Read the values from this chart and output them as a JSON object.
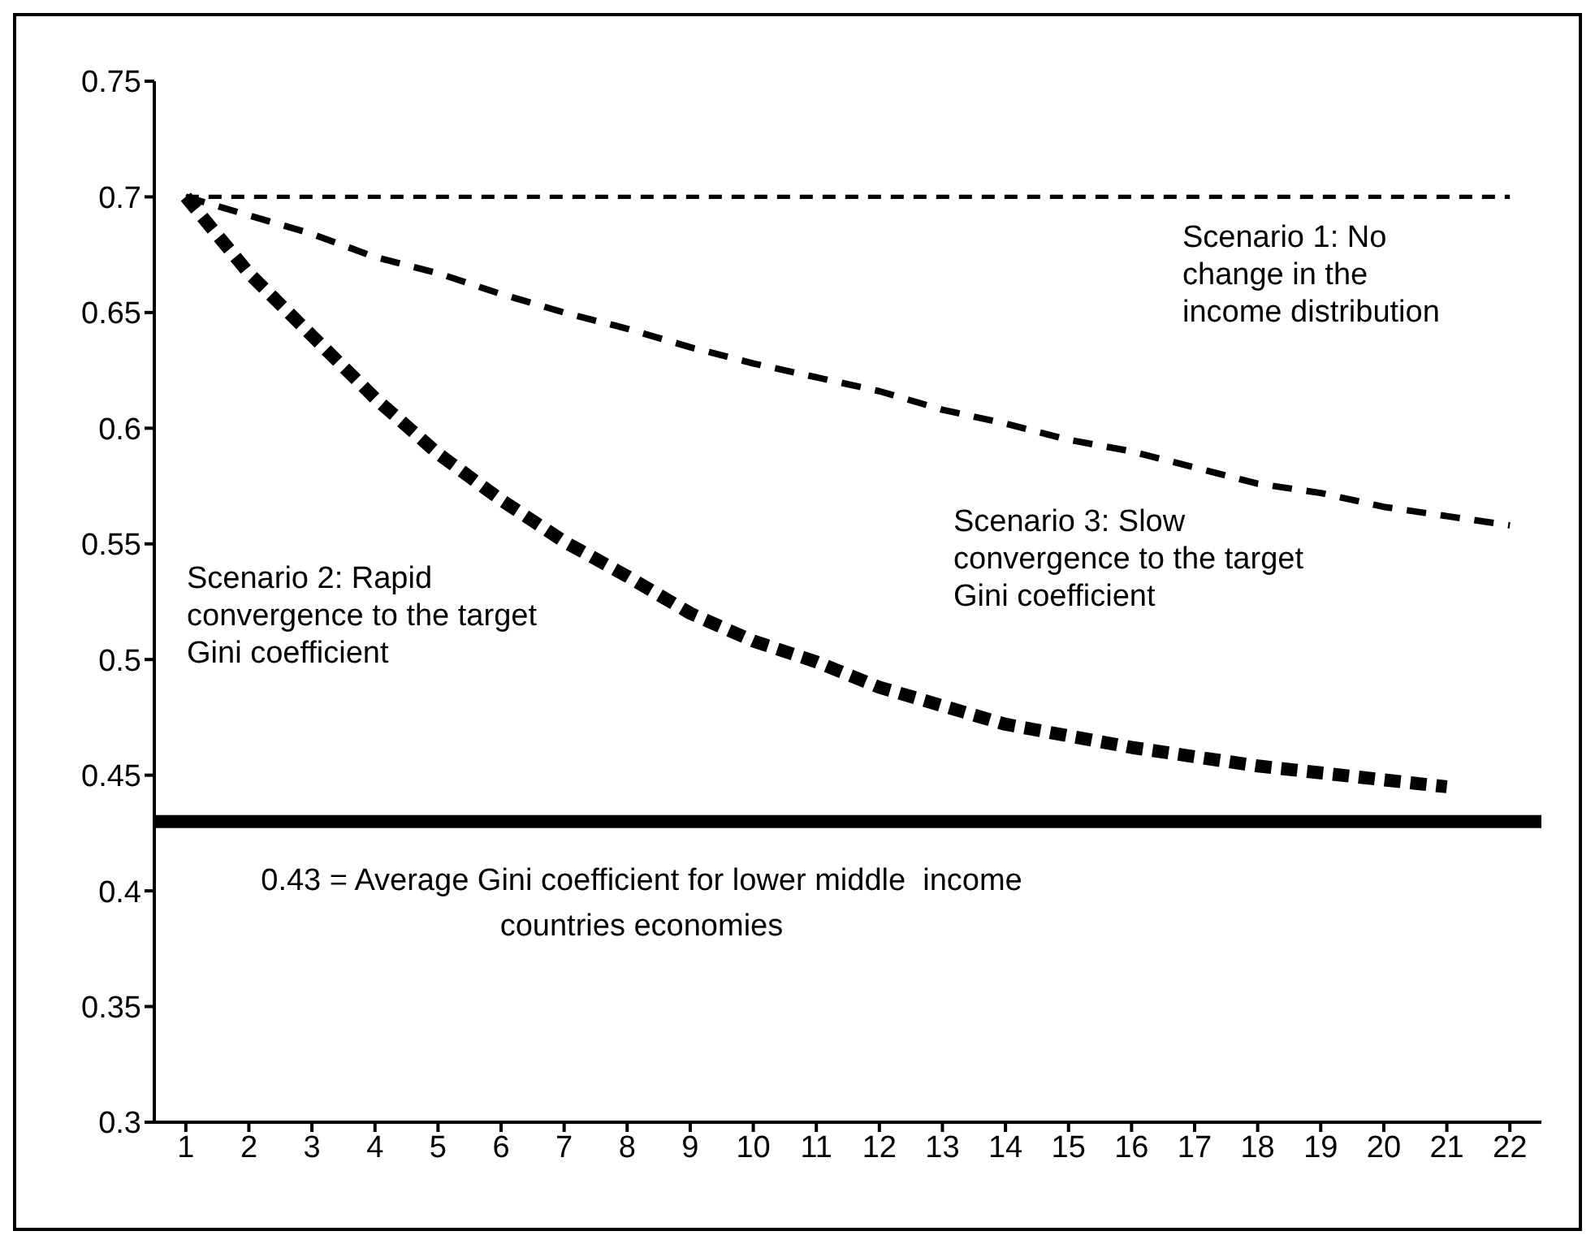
{
  "chart_data": {
    "type": "line",
    "x": [
      1,
      2,
      3,
      4,
      5,
      6,
      7,
      8,
      9,
      10,
      11,
      12,
      13,
      14,
      15,
      16,
      17,
      18,
      19,
      20,
      21,
      22
    ],
    "series": [
      {
        "name": "Scenario 1: No change in the income distribution",
        "color": "#000000",
        "line_style": "dashed",
        "values": [
          0.7,
          0.7,
          0.7,
          0.7,
          0.7,
          0.7,
          0.7,
          0.7,
          0.7,
          0.7,
          0.7,
          0.7,
          0.7,
          0.7,
          0.7,
          0.7,
          0.7,
          0.7,
          0.7,
          0.7,
          0.7,
          0.7
        ]
      },
      {
        "name": "Scenario 2: Rapid convergence to the target Gini coefficient",
        "color": "#000000",
        "line_style": "dashed",
        "values": [
          0.7,
          0.667,
          0.64,
          0.613,
          0.589,
          0.569,
          0.551,
          0.536,
          0.52,
          0.508,
          0.499,
          0.488,
          0.48,
          0.472,
          0.467,
          0.462,
          0.458,
          0.454,
          0.451,
          0.448,
          0.445,
          null
        ]
      },
      {
        "name": "Scenario 3: Slow convergence to the target Gini coefficient",
        "color": "#000000",
        "line_style": "dashed",
        "values": [
          0.7,
          0.692,
          0.684,
          0.674,
          0.667,
          0.658,
          0.65,
          0.643,
          0.635,
          0.628,
          0.622,
          0.616,
          0.608,
          0.602,
          0.595,
          0.59,
          0.583,
          0.576,
          0.572,
          0.566,
          0.562,
          0.558
        ]
      }
    ],
    "xlim": [
      0.5,
      22.5
    ],
    "xticks": [
      1,
      2,
      3,
      4,
      5,
      6,
      7,
      8,
      9,
      10,
      11,
      12,
      13,
      14,
      15,
      16,
      17,
      18,
      19,
      20,
      21,
      22
    ],
    "ylim": [
      0.3,
      0.75
    ],
    "yticks": [
      0.3,
      0.35,
      0.4,
      0.45,
      0.5,
      0.55,
      0.6,
      0.65,
      0.7,
      0.75
    ],
    "ref_lines": [
      {
        "axis": "y",
        "value": 0.43,
        "label": "0.43 = Average Gini coefficient for lower middle  income countries economies",
        "color": "#000000",
        "line_style": "solid"
      }
    ],
    "grid": false,
    "legend": false,
    "marker": "none"
  }
}
